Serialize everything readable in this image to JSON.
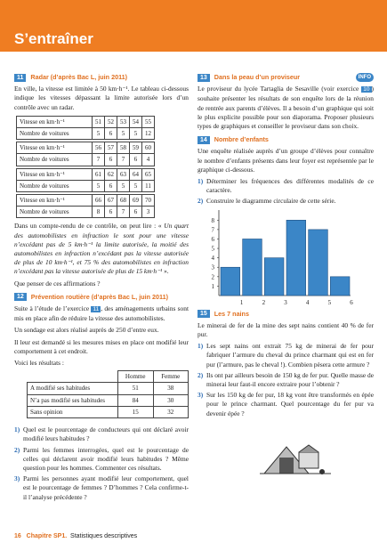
{
  "header": {
    "title": "S’entraîner"
  },
  "ex11": {
    "number": "11",
    "title": "Radar (d’après Bac L, juin 2011)",
    "intro": "En ville, la vitesse est limitée à 50 km·h⁻¹. Le tableau ci-dessous indique les vitesses dépassant la limite autorisée lors d’un contrôle avec un radar.",
    "tables": [
      {
        "speed_label": "Vitesse en km·h⁻¹",
        "count_label": "Nombre de voitures",
        "speeds": [
          "51",
          "52",
          "53",
          "54",
          "55"
        ],
        "counts": [
          "5",
          "6",
          "5",
          "5",
          "12"
        ]
      },
      {
        "speed_label": "Vitesse en km·h⁻¹",
        "count_label": "Nombre de voitures",
        "speeds": [
          "56",
          "57",
          "58",
          "59",
          "60"
        ],
        "counts": [
          "7",
          "6",
          "7",
          "6",
          "4"
        ]
      },
      {
        "speed_label": "Vitesse en km·h⁻¹",
        "count_label": "Nombre de voitures",
        "speeds": [
          "61",
          "62",
          "63",
          "64",
          "65"
        ],
        "counts": [
          "5",
          "6",
          "5",
          "5",
          "11"
        ]
      },
      {
        "speed_label": "Vitesse en km·h⁻¹",
        "count_label": "Nombre de voitures",
        "speeds": [
          "66",
          "67",
          "68",
          "69",
          "70"
        ],
        "counts": [
          "8",
          "6",
          "7",
          "6",
          "3"
        ]
      }
    ],
    "text_a": "Dans un compte-rendu de ce contrôle, on peut lire : «",
    "quote": "Un quart des automobilistes en infraction le sont pour une vitesse n’excédant pas de 5 km·h⁻¹ la limite autorisée, la moitié des automobilistes en infraction n’excédant pas la vitesse autorisée de plus de 10 km·h⁻¹, et 75 % des automobilistes en infraction n’excédant pas la vitesse autorisée de plus de 15 km·h⁻¹",
    "text_b": "».",
    "question": "Que penser de ces affirmations ?"
  },
  "ex12": {
    "number": "12",
    "title": "Prévention routière (d’après Bac L, juin 2011)",
    "text_a": "Suite à l’étude de l’exercice",
    "ref": "11",
    "text_b": ", des aménagements urbains sont mis en place afin de réduire la vitesse des automobilistes.",
    "p2": "Un sondage est alors réalisé auprès de 250 d’entre eux.",
    "p3": "Il leur est demandé si les mesures mises en place ont modifié leur comportement à cet endroit.",
    "p4": "Voici les résultats :",
    "table": {
      "headers": [
        "Homme",
        "Femme"
      ],
      "rows": [
        {
          "label": "A modifié ses habitudes",
          "values": [
            "51",
            "38"
          ]
        },
        {
          "label": "N’a pas modifié ses habitudes",
          "values": [
            "84",
            "30"
          ]
        },
        {
          "label": "Sans opinion",
          "values": [
            "15",
            "32"
          ]
        }
      ]
    },
    "questions": [
      {
        "n": "1)",
        "text": "Quel est le pourcentage de conducteurs qui ont déclaré avoir modifié leurs habitudes ?"
      },
      {
        "n": "2)",
        "text": "Parmi les femmes interrogées, quel est le pourcentage de celles qui déclarent avoir modifié leurs habitudes ? Même question pour les hommes. Commenter ces résultats."
      },
      {
        "n": "3)",
        "text": "Parmi les personnes ayant modifié leur comportement, quel est le pourcentage de femmes ? D’hommes ? Cela confirme-t-il l’analyse précédente ?"
      }
    ]
  },
  "ex13": {
    "number": "13",
    "title": "Dans la peau d’un proviseur",
    "badge": "INFO",
    "text_a": "Le proviseur du lycée Tartaglia de Sesaville (voir exercice",
    "ref": "10",
    "text_b": ") souhaite présenter les résultats de son enquête lors de la réunion de rentrée aux parents d’élèves. Il a besoin d’un graphique qui soit le plus explicite possible pour son diaporama. Proposer plusieurs types de graphiques et conseiller le proviseur dans son choix."
  },
  "ex14": {
    "number": "14",
    "title": "Nombre d’enfants",
    "intro": "Une enquête réalisée auprès d’un groupe d’élèves pour connaître le nombre d’enfants présents dans leur foyer est représentée par le graphique ci-dessous.",
    "questions": [
      {
        "n": "1)",
        "text": "Déterminer les fréquences des différentes modalités de ce caractère."
      },
      {
        "n": "2)",
        "text": "Construire le diagramme circulaire de cette série."
      }
    ]
  },
  "chart_data": {
    "type": "bar",
    "categories": [
      "1",
      "2",
      "3",
      "4",
      "5",
      "6"
    ],
    "values": [
      3,
      6,
      4,
      8,
      7,
      2
    ],
    "ylim": [
      0,
      8.5
    ],
    "yticks": [
      "1",
      "2",
      "3",
      "4",
      "5",
      "6",
      "7",
      "8"
    ],
    "bar_color": "#3b86c7",
    "grid": false
  },
  "ex15": {
    "number": "15",
    "title": "Les 7 nains",
    "intro": "Le minerai de fer de la mine des sept nains contient 40 % de fer pur.",
    "questions": [
      {
        "n": "1)",
        "text": "Les sept nains ont extrait 75 kg de minerai de fer pour fabriquer l’armure du cheval du prince charmant qui est en fer pur (l’armure, pas le cheval !). Combien pèsera cette armure ?"
      },
      {
        "n": "2)",
        "text": "Ils ont par ailleurs besoin de 150 kg de fer pur. Quelle masse de minerai leur faut-il encore extraire pour l’obtenir ?"
      },
      {
        "n": "3)",
        "text": "Sur les 150 kg de fer pur, 18 kg vont être transformés en épée pour le prince charmant. Quel pourcentage du fer pur va devenir épée ?"
      }
    ]
  },
  "footer": {
    "page": "16",
    "chapter": "Chapitre SP1.",
    "chapter_title": "Statistiques descriptives"
  }
}
